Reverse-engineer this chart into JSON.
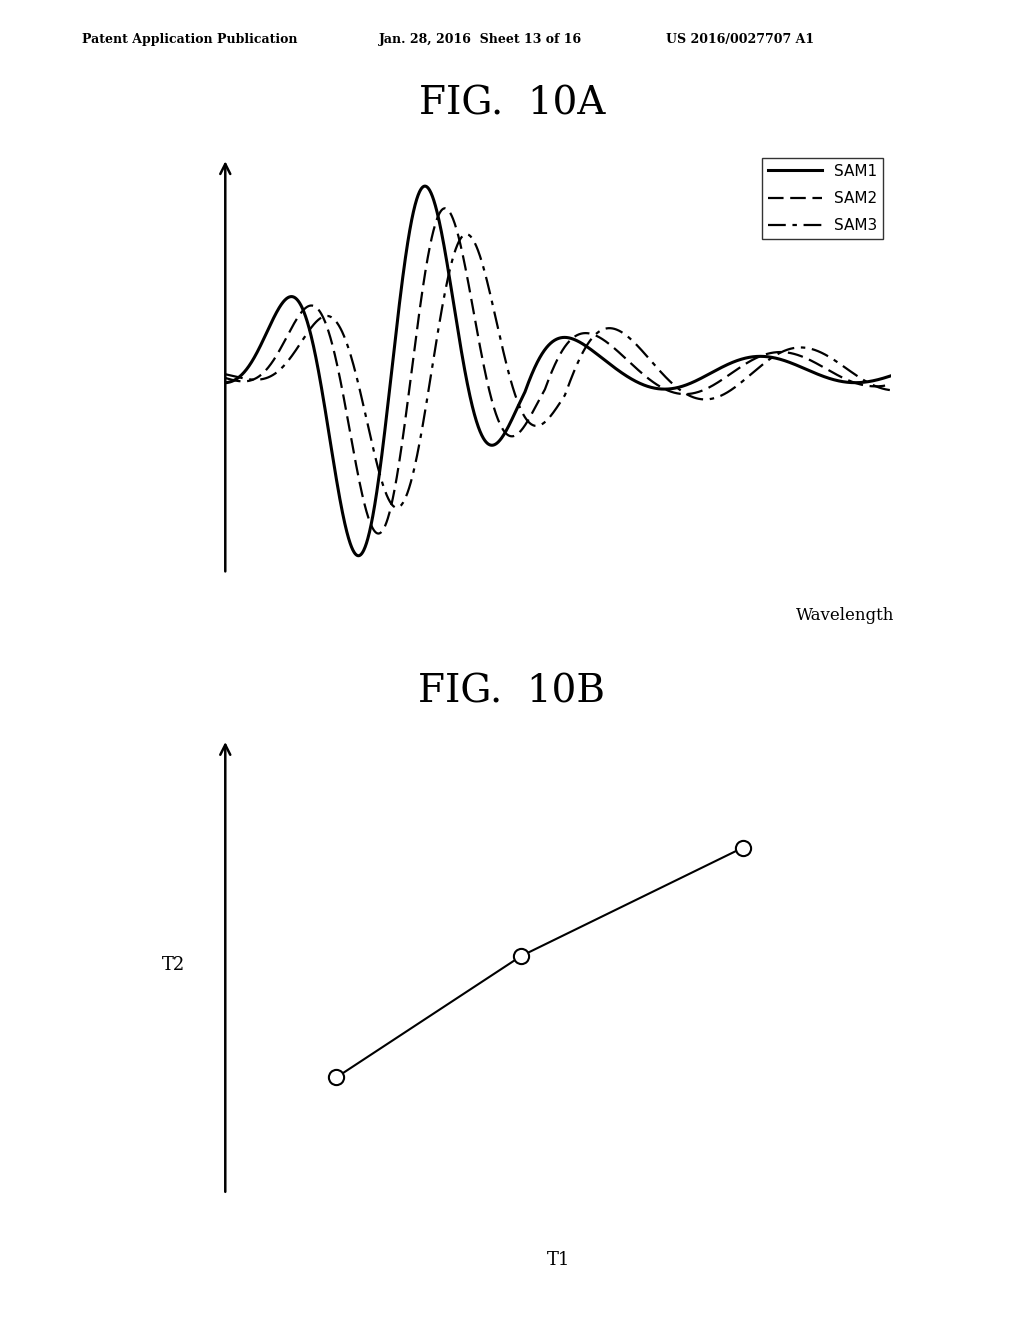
{
  "title_top": "Patent Application Publication",
  "title_date": "Jan. 28, 2016  Sheet 13 of 16",
  "title_patent": "US 2016/0027707 A1",
  "fig10a_title": "FIG.  10A",
  "fig10b_title": "FIG.  10B",
  "legend_labels": [
    "SAM1",
    "SAM2",
    "SAM3"
  ],
  "xlabel_10a": "Wavelength",
  "xlabel_10b": "T1",
  "ylabel_10b": "T2",
  "bg_color": "#ffffff",
  "line_color": "#000000",
  "header_fontsize": 9,
  "fig_title_fontsize": 28,
  "legend_fontsize": 11,
  "axis_label_fontsize": 12
}
